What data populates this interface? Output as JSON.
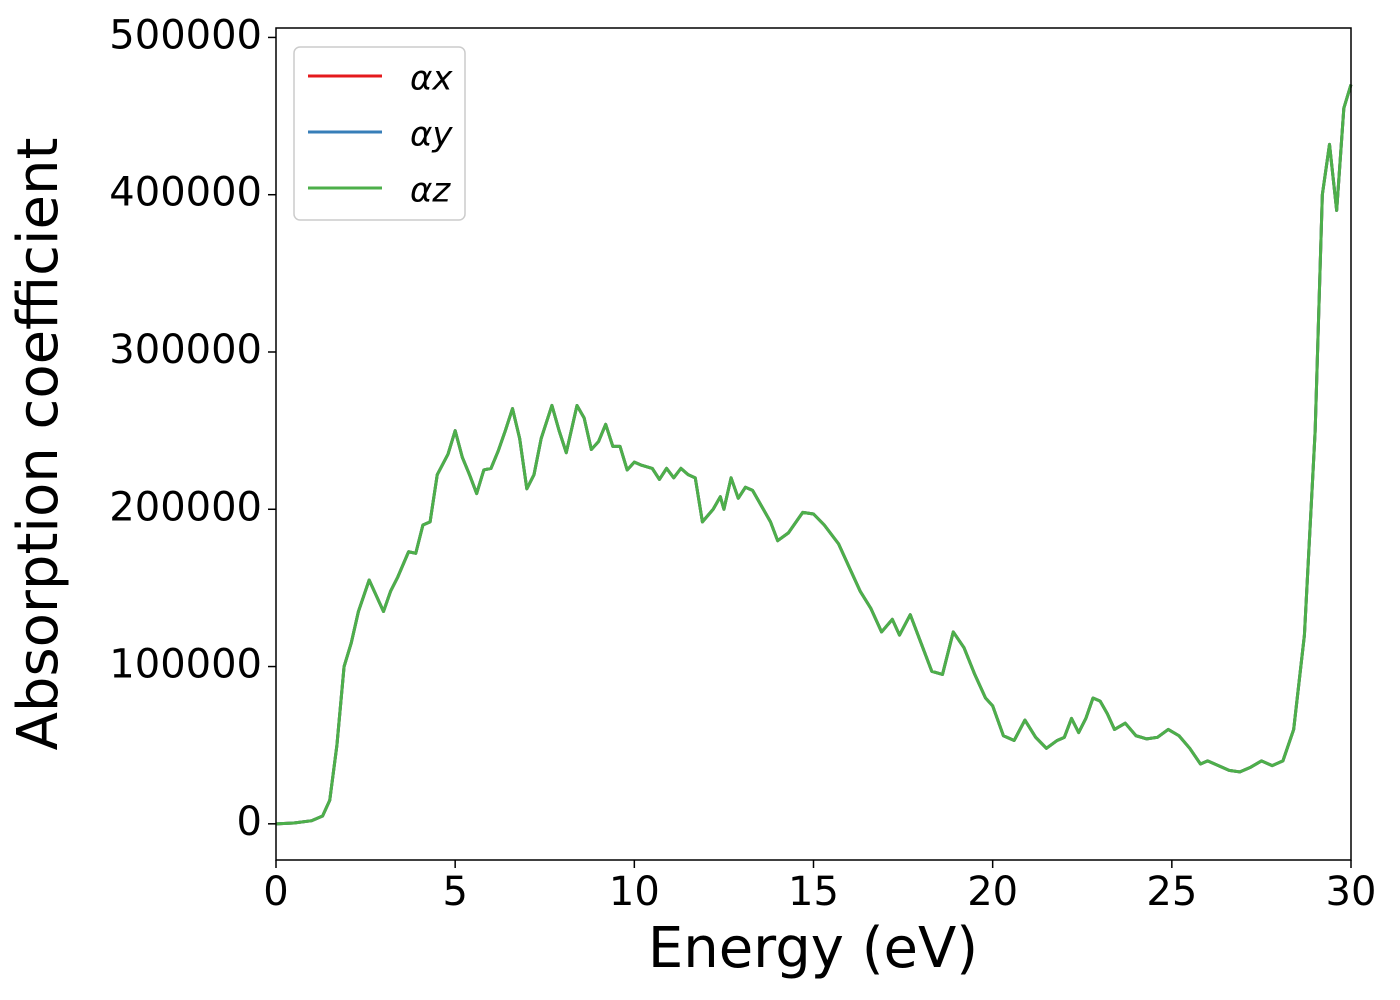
{
  "chart_data": {
    "type": "line",
    "xlabel": "Energy (eV)",
    "ylabel": "Absorption coefficient",
    "x": [
      0,
      0.5,
      1.0,
      1.3,
      1.5,
      1.7,
      1.9,
      2.1,
      2.3,
      2.6,
      2.8,
      3.0,
      3.2,
      3.4,
      3.7,
      3.9,
      4.1,
      4.3,
      4.5,
      4.8,
      5.0,
      5.2,
      5.4,
      5.6,
      5.8,
      6.0,
      6.2,
      6.4,
      6.6,
      6.8,
      7.0,
      7.2,
      7.4,
      7.7,
      7.9,
      8.1,
      8.4,
      8.6,
      8.8,
      9.0,
      9.2,
      9.4,
      9.6,
      9.8,
      10.0,
      10.2,
      10.5,
      10.7,
      10.9,
      11.1,
      11.3,
      11.5,
      11.7,
      11.9,
      12.2,
      12.4,
      12.5,
      12.7,
      12.9,
      13.1,
      13.3,
      13.6,
      13.8,
      14.0,
      14.3,
      14.7,
      15.0,
      15.3,
      15.7,
      16.0,
      16.3,
      16.6,
      16.9,
      17.2,
      17.4,
      17.7,
      18.0,
      18.3,
      18.6,
      18.9,
      19.2,
      19.5,
      19.8,
      20.0,
      20.3,
      20.6,
      20.9,
      21.2,
      21.5,
      21.8,
      22.0,
      22.2,
      22.4,
      22.6,
      22.8,
      23.0,
      23.2,
      23.4,
      23.7,
      24.0,
      24.3,
      24.6,
      24.9,
      25.2,
      25.5,
      25.8,
      26.0,
      26.3,
      26.6,
      26.9,
      27.2,
      27.5,
      27.8,
      28.1,
      28.4,
      28.7,
      29.0,
      29.2,
      29.4,
      29.6,
      29.8,
      30.0
    ],
    "series": [
      {
        "name": "αx",
        "color": "#e41a1c",
        "values": [
          0,
          500,
          2000,
          5000,
          15000,
          50000,
          100000,
          115000,
          135000,
          155000,
          145000,
          135000,
          148000,
          157000,
          173000,
          172000,
          190000,
          192000,
          222000,
          235000,
          250000,
          233000,
          222000,
          210000,
          225000,
          226000,
          237000,
          250000,
          264000,
          245000,
          213000,
          222000,
          245000,
          266000,
          250000,
          236000,
          266000,
          258000,
          238000,
          243000,
          254000,
          240000,
          240000,
          225000,
          230000,
          228000,
          226000,
          219000,
          226000,
          220000,
          226000,
          222000,
          220000,
          192000,
          200000,
          208000,
          200000,
          220000,
          207000,
          214000,
          212000,
          200000,
          192000,
          180000,
          185000,
          198000,
          197000,
          190000,
          178000,
          163000,
          148000,
          137000,
          122000,
          130000,
          120000,
          133000,
          115000,
          97000,
          95000,
          122000,
          112000,
          95000,
          80000,
          75000,
          56000,
          53000,
          66000,
          55000,
          48000,
          53000,
          55000,
          67000,
          58000,
          67000,
          80000,
          78000,
          70000,
          60000,
          64000,
          56000,
          54000,
          55000,
          60000,
          56000,
          48000,
          38000,
          40000,
          37000,
          34000,
          33000,
          36000,
          40000,
          37000,
          40000,
          60000,
          120000,
          250000,
          400000,
          432000,
          390000,
          455000,
          470000
        ]
      },
      {
        "name": "αy",
        "color": "#377eb8",
        "values": [
          0,
          500,
          2000,
          5000,
          15000,
          50000,
          100000,
          115000,
          135000,
          155000,
          145000,
          135000,
          148000,
          157000,
          173000,
          172000,
          190000,
          192000,
          222000,
          235000,
          250000,
          233000,
          222000,
          210000,
          225000,
          226000,
          237000,
          250000,
          264000,
          245000,
          213000,
          222000,
          245000,
          266000,
          250000,
          236000,
          266000,
          258000,
          238000,
          243000,
          254000,
          240000,
          240000,
          225000,
          230000,
          228000,
          226000,
          219000,
          226000,
          220000,
          226000,
          222000,
          220000,
          192000,
          200000,
          208000,
          200000,
          220000,
          207000,
          214000,
          212000,
          200000,
          192000,
          180000,
          185000,
          198000,
          197000,
          190000,
          178000,
          163000,
          148000,
          137000,
          122000,
          130000,
          120000,
          133000,
          115000,
          97000,
          95000,
          122000,
          112000,
          95000,
          80000,
          75000,
          56000,
          53000,
          66000,
          55000,
          48000,
          53000,
          55000,
          67000,
          58000,
          67000,
          80000,
          78000,
          70000,
          60000,
          64000,
          56000,
          54000,
          55000,
          60000,
          56000,
          48000,
          38000,
          40000,
          37000,
          34000,
          33000,
          36000,
          40000,
          37000,
          40000,
          60000,
          120000,
          250000,
          400000,
          432000,
          390000,
          455000,
          470000
        ]
      },
      {
        "name": "αz",
        "color": "#4daf4a",
        "values": [
          0,
          500,
          2000,
          5000,
          15000,
          50000,
          100000,
          115000,
          135000,
          155000,
          145000,
          135000,
          148000,
          157000,
          173000,
          172000,
          190000,
          192000,
          222000,
          235000,
          250000,
          233000,
          222000,
          210000,
          225000,
          226000,
          237000,
          250000,
          264000,
          245000,
          213000,
          222000,
          245000,
          266000,
          250000,
          236000,
          266000,
          258000,
          238000,
          243000,
          254000,
          240000,
          240000,
          225000,
          230000,
          228000,
          226000,
          219000,
          226000,
          220000,
          226000,
          222000,
          220000,
          192000,
          200000,
          208000,
          200000,
          220000,
          207000,
          214000,
          212000,
          200000,
          192000,
          180000,
          185000,
          198000,
          197000,
          190000,
          178000,
          163000,
          148000,
          137000,
          122000,
          130000,
          120000,
          133000,
          115000,
          97000,
          95000,
          122000,
          112000,
          95000,
          80000,
          75000,
          56000,
          53000,
          66000,
          55000,
          48000,
          53000,
          55000,
          67000,
          58000,
          67000,
          80000,
          78000,
          70000,
          60000,
          64000,
          56000,
          54000,
          55000,
          60000,
          56000,
          48000,
          38000,
          40000,
          37000,
          34000,
          33000,
          36000,
          40000,
          37000,
          40000,
          60000,
          120000,
          250000,
          400000,
          432000,
          390000,
          455000,
          470000
        ]
      }
    ],
    "xlim": [
      0,
      30
    ],
    "xticks": [
      0,
      5,
      10,
      15,
      20,
      25,
      30
    ],
    "ylim": [
      -23000,
      506000
    ],
    "yticks": [
      0,
      100000,
      200000,
      300000,
      400000,
      500000
    ],
    "grid": false,
    "legend": "upper left"
  }
}
